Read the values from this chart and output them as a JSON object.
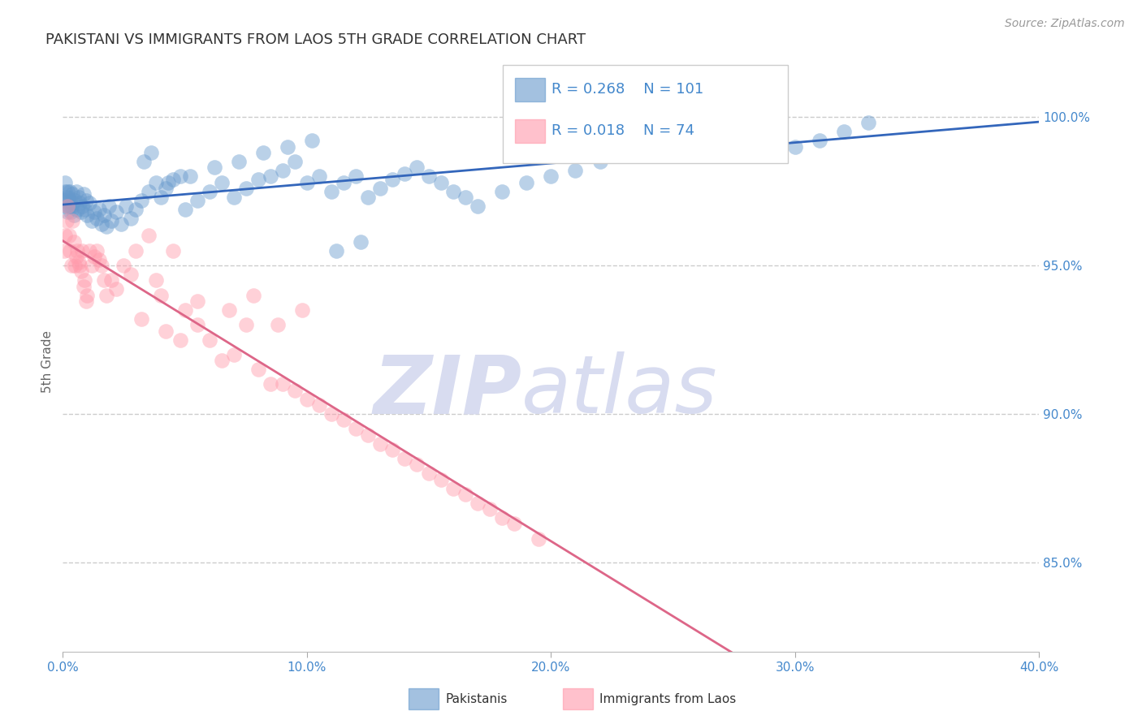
{
  "title": "PAKISTANI VS IMMIGRANTS FROM LAOS 5TH GRADE CORRELATION CHART",
  "source": "Source: ZipAtlas.com",
  "ylabel": "5th Grade",
  "legend_label1": "Pakistanis",
  "legend_label2": "Immigrants from Laos",
  "R1": 0.268,
  "N1": 101,
  "R2": 0.018,
  "N2": 74,
  "color_blue": "#6699CC",
  "color_pink": "#FF99AA",
  "color_line_blue": "#3366BB",
  "color_line_pink": "#DD6688",
  "color_axis_labels": "#4488CC",
  "background": "#FFFFFF",
  "xlim": [
    0.0,
    40.0
  ],
  "ylim": [
    82.0,
    101.5
  ],
  "yticks": [
    85.0,
    90.0,
    95.0,
    100.0
  ],
  "xticks": [
    0.0,
    10.0,
    20.0,
    30.0,
    40.0
  ],
  "blue_x": [
    0.05,
    0.08,
    0.1,
    0.12,
    0.15,
    0.18,
    0.2,
    0.22,
    0.25,
    0.28,
    0.3,
    0.33,
    0.35,
    0.38,
    0.4,
    0.45,
    0.5,
    0.55,
    0.6,
    0.65,
    0.7,
    0.75,
    0.8,
    0.85,
    0.9,
    0.95,
    1.0,
    1.1,
    1.2,
    1.3,
    1.4,
    1.5,
    1.6,
    1.7,
    1.8,
    1.9,
    2.0,
    2.2,
    2.4,
    2.6,
    2.8,
    3.0,
    3.2,
    3.5,
    3.8,
    4.0,
    4.2,
    4.5,
    4.8,
    5.0,
    5.5,
    6.0,
    6.5,
    7.0,
    7.5,
    8.0,
    8.5,
    9.0,
    9.5,
    10.0,
    10.5,
    11.0,
    11.5,
    12.0,
    12.5,
    13.0,
    13.5,
    14.0,
    14.5,
    15.0,
    15.5,
    16.0,
    16.5,
    17.0,
    18.0,
    19.0,
    20.0,
    21.0,
    22.0,
    23.0,
    24.0,
    25.0,
    26.0,
    27.0,
    28.0,
    29.0,
    30.0,
    31.0,
    32.0,
    33.0,
    3.3,
    3.6,
    4.3,
    5.2,
    6.2,
    7.2,
    8.2,
    9.2,
    10.2,
    11.2,
    12.2
  ],
  "blue_y": [
    97.2,
    97.5,
    97.8,
    97.3,
    97.0,
    97.5,
    96.8,
    97.3,
    97.0,
    97.5,
    97.2,
    96.8,
    97.0,
    97.4,
    97.1,
    96.7,
    97.2,
    97.5,
    96.9,
    97.3,
    97.1,
    96.8,
    97.0,
    97.4,
    96.9,
    97.2,
    96.7,
    97.1,
    96.5,
    96.8,
    96.6,
    96.9,
    96.4,
    96.7,
    96.3,
    97.0,
    96.5,
    96.8,
    96.4,
    97.0,
    96.6,
    96.9,
    97.2,
    97.5,
    97.8,
    97.3,
    97.6,
    97.9,
    98.0,
    96.9,
    97.2,
    97.5,
    97.8,
    97.3,
    97.6,
    97.9,
    98.0,
    98.2,
    98.5,
    97.8,
    98.0,
    97.5,
    97.8,
    98.0,
    97.3,
    97.6,
    97.9,
    98.1,
    98.3,
    98.0,
    97.8,
    97.5,
    97.3,
    97.0,
    97.5,
    97.8,
    98.0,
    98.2,
    98.5,
    98.8,
    99.0,
    99.2,
    99.0,
    99.3,
    99.5,
    99.7,
    99.0,
    99.2,
    99.5,
    99.8,
    98.5,
    98.8,
    97.8,
    98.0,
    98.3,
    98.5,
    98.8,
    99.0,
    99.2,
    95.5,
    95.8
  ],
  "pink_x": [
    0.05,
    0.1,
    0.15,
    0.2,
    0.25,
    0.3,
    0.35,
    0.4,
    0.5,
    0.6,
    0.7,
    0.8,
    0.9,
    1.0,
    1.2,
    1.4,
    1.6,
    1.8,
    2.0,
    2.5,
    3.0,
    3.5,
    4.0,
    4.5,
    5.0,
    5.5,
    6.0,
    7.0,
    8.0,
    9.0,
    10.0,
    11.0,
    12.0,
    13.0,
    14.0,
    15.0,
    16.0,
    17.0,
    18.0,
    0.45,
    0.55,
    0.65,
    0.75,
    0.85,
    0.95,
    1.1,
    1.3,
    1.5,
    1.7,
    2.2,
    2.8,
    3.2,
    3.8,
    4.2,
    4.8,
    5.5,
    6.5,
    8.5,
    9.5,
    10.5,
    11.5,
    12.5,
    13.5,
    14.5,
    15.5,
    16.5,
    17.5,
    18.5,
    19.5,
    7.5,
    6.8,
    7.8,
    8.8,
    9.8
  ],
  "pink_y": [
    95.5,
    96.0,
    96.5,
    97.0,
    96.0,
    95.5,
    95.0,
    96.5,
    95.0,
    95.5,
    95.0,
    95.5,
    94.5,
    94.0,
    95.0,
    95.5,
    95.0,
    94.0,
    94.5,
    95.0,
    95.5,
    96.0,
    94.0,
    95.5,
    93.5,
    93.0,
    92.5,
    92.0,
    91.5,
    91.0,
    90.5,
    90.0,
    89.5,
    89.0,
    88.5,
    88.0,
    87.5,
    87.0,
    86.5,
    95.8,
    95.3,
    95.1,
    94.8,
    94.3,
    93.8,
    95.5,
    95.3,
    95.2,
    94.5,
    94.2,
    94.7,
    93.2,
    94.5,
    92.8,
    92.5,
    93.8,
    91.8,
    91.0,
    90.8,
    90.3,
    89.8,
    89.3,
    88.8,
    88.3,
    87.8,
    87.3,
    86.8,
    86.3,
    85.8,
    93.0,
    93.5,
    94.0,
    93.0,
    93.5
  ],
  "watermark_zip": "ZIP",
  "watermark_atlas": "atlas",
  "watermark_color": "#D8DCF0",
  "grid_color": "#CCCCCC",
  "grid_style": "--"
}
